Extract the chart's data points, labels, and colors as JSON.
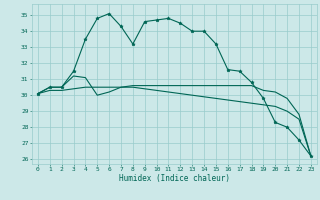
{
  "title": "",
  "xlabel": "Humidex (Indice chaleur)",
  "ylabel": "",
  "xlim": [
    -0.5,
    23.5
  ],
  "ylim": [
    25.7,
    35.7
  ],
  "yticks": [
    26,
    27,
    28,
    29,
    30,
    31,
    32,
    33,
    34,
    35
  ],
  "xticks": [
    0,
    1,
    2,
    3,
    4,
    5,
    6,
    7,
    8,
    9,
    10,
    11,
    12,
    13,
    14,
    15,
    16,
    17,
    18,
    19,
    20,
    21,
    22,
    23
  ],
  "bg_color": "#cce8e8",
  "grid_color": "#99cccc",
  "line_color": "#006655",
  "line1": [
    30.1,
    30.5,
    30.5,
    31.5,
    33.5,
    34.8,
    35.1,
    34.3,
    33.2,
    34.6,
    34.7,
    34.8,
    34.5,
    34.0,
    34.0,
    33.2,
    31.6,
    31.5,
    30.8,
    29.8,
    28.3,
    28.0,
    27.2,
    26.2
  ],
  "line2": [
    30.1,
    30.5,
    30.5,
    31.2,
    31.1,
    30.0,
    30.2,
    30.5,
    30.6,
    30.6,
    30.6,
    30.6,
    30.6,
    30.6,
    30.6,
    30.6,
    30.6,
    30.6,
    30.6,
    30.3,
    30.2,
    29.8,
    28.8,
    26.2
  ],
  "line3": [
    30.1,
    30.3,
    30.3,
    30.4,
    30.5,
    30.5,
    30.5,
    30.5,
    30.5,
    30.4,
    30.3,
    30.2,
    30.1,
    30.0,
    29.9,
    29.8,
    29.7,
    29.6,
    29.5,
    29.4,
    29.3,
    29.0,
    28.5,
    26.2
  ]
}
